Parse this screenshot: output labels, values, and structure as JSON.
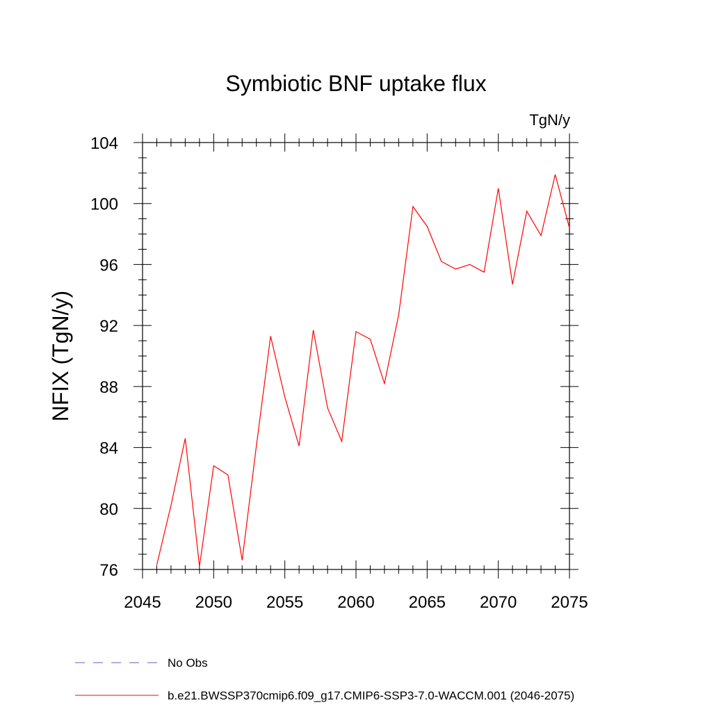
{
  "chart_data": {
    "type": "line",
    "title": "Symbiotic BNF uptake flux",
    "units": "TgN/y",
    "xlabel": "",
    "ylabel": "NFIX  (TgN/y)",
    "xlim": [
      2045,
      2075
    ],
    "ylim": [
      76,
      104
    ],
    "x_ticks": [
      2045,
      2050,
      2055,
      2060,
      2065,
      2070,
      2075
    ],
    "y_ticks": [
      76,
      80,
      84,
      88,
      92,
      96,
      100,
      104
    ],
    "grid": false,
    "legend_position": "bottom",
    "series": [
      {
        "name": "b.e21.BWSSP370cmip6.f09_g17.CMIP6-SSP3-7.0-WACCM.001 (2046-2075)",
        "color": "#ff0000",
        "style": "solid",
        "x": [
          2046,
          2047,
          2048,
          2049,
          2050,
          2051,
          2052,
          2053,
          2054,
          2055,
          2056,
          2057,
          2058,
          2059,
          2060,
          2061,
          2062,
          2063,
          2064,
          2065,
          2066,
          2067,
          2068,
          2069,
          2070,
          2071,
          2072,
          2073,
          2074,
          2075
        ],
        "values": [
          76.3,
          80.2,
          84.6,
          76.2,
          82.8,
          82.2,
          76.6,
          84.1,
          91.3,
          87.3,
          84.1,
          91.7,
          86.6,
          84.4,
          91.6,
          91.1,
          88.2,
          92.7,
          99.8,
          98.5,
          96.2,
          95.7,
          96.0,
          95.5,
          101.0,
          94.7,
          99.5,
          97.9,
          101.9,
          98.4
        ]
      }
    ],
    "legend": [
      {
        "label": "No Obs",
        "color": "#6a5acd",
        "style": "dashed"
      },
      {
        "label": "b.e21.BWSSP370cmip6.f09_g17.CMIP6-SSP3-7.0-WACCM.001 (2046-2075)",
        "color": "#ff0000",
        "style": "solid"
      }
    ]
  }
}
